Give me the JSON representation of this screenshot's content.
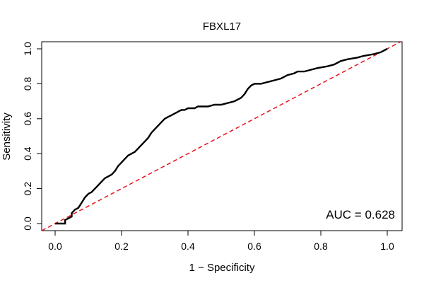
{
  "chart_data": {
    "type": "line",
    "title": "FBXL17",
    "xlabel": "1 − Specificity",
    "ylabel": "Sensitivity",
    "xlim": [
      0,
      1
    ],
    "ylim": [
      0,
      1
    ],
    "x_ticks": [
      "0.0",
      "0.2",
      "0.4",
      "0.6",
      "0.8",
      "1.0"
    ],
    "y_ticks": [
      "0.0",
      "0.2",
      "0.4",
      "0.6",
      "0.8",
      "1.0"
    ],
    "annotation": "AUC = 0.628",
    "grid": false,
    "series": [
      {
        "color": "#000000",
        "style": "solid",
        "x": [
          0.0,
          0.03,
          0.03,
          0.05,
          0.05,
          0.06,
          0.07,
          0.08,
          0.09,
          0.1,
          0.11,
          0.12,
          0.13,
          0.14,
          0.15,
          0.16,
          0.17,
          0.18,
          0.19,
          0.2,
          0.21,
          0.22,
          0.23,
          0.24,
          0.25,
          0.26,
          0.27,
          0.28,
          0.29,
          0.3,
          0.31,
          0.32,
          0.33,
          0.34,
          0.35,
          0.36,
          0.37,
          0.38,
          0.39,
          0.4,
          0.42,
          0.43,
          0.44,
          0.46,
          0.48,
          0.5,
          0.52,
          0.54,
          0.56,
          0.57,
          0.58,
          0.59,
          0.6,
          0.62,
          0.64,
          0.66,
          0.68,
          0.7,
          0.72,
          0.73,
          0.75,
          0.77,
          0.79,
          0.82,
          0.84,
          0.86,
          0.88,
          0.91,
          0.93,
          0.96,
          0.98,
          1.0
        ],
        "y": [
          0.0,
          0.0,
          0.02,
          0.04,
          0.06,
          0.08,
          0.09,
          0.12,
          0.15,
          0.17,
          0.18,
          0.2,
          0.22,
          0.24,
          0.26,
          0.27,
          0.28,
          0.3,
          0.33,
          0.35,
          0.37,
          0.39,
          0.4,
          0.41,
          0.43,
          0.45,
          0.47,
          0.49,
          0.52,
          0.54,
          0.56,
          0.58,
          0.6,
          0.61,
          0.62,
          0.63,
          0.64,
          0.65,
          0.65,
          0.66,
          0.66,
          0.67,
          0.67,
          0.67,
          0.68,
          0.68,
          0.69,
          0.7,
          0.72,
          0.74,
          0.77,
          0.79,
          0.8,
          0.8,
          0.81,
          0.82,
          0.83,
          0.85,
          0.86,
          0.87,
          0.87,
          0.88,
          0.89,
          0.9,
          0.91,
          0.93,
          0.94,
          0.95,
          0.96,
          0.97,
          0.98,
          1.0
        ]
      },
      {
        "color": "#e8141c",
        "style": "dashed",
        "x": [
          -0.04,
          1.04
        ],
        "y": [
          -0.04,
          1.04
        ]
      }
    ]
  }
}
